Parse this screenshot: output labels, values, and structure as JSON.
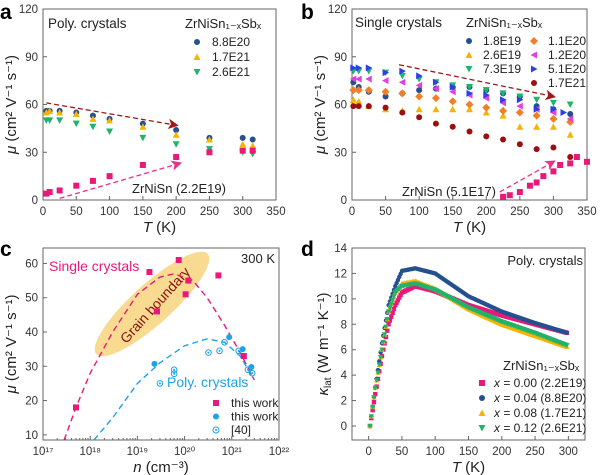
{
  "chart_data": [
    {
      "panel": "a",
      "type": "scatter",
      "xlabel": "T (K)",
      "ylabel": "μ (cm² V⁻¹ s⁻¹)",
      "xlim": [
        0,
        350
      ],
      "ylim": [
        0,
        120
      ],
      "xticks": [
        0,
        50,
        100,
        150,
        200,
        250,
        300,
        350
      ],
      "yticks": [
        0,
        30,
        60,
        90,
        120
      ],
      "annotation": "Poly. crystals",
      "legend_title": "ZrNiSn₁₋ₓSbₓ",
      "series": [
        {
          "name": "8.8E20",
          "marker": "circle",
          "color": "#24508f",
          "x": [
            5,
            10,
            25,
            50,
            75,
            100,
            150,
            200,
            250,
            300,
            315
          ],
          "y": [
            56,
            56,
            56,
            55,
            53,
            51,
            48,
            44,
            39,
            39,
            38
          ]
        },
        {
          "name": "1.7E21",
          "marker": "triangle-up",
          "color": "#f5b400",
          "x": [
            5,
            10,
            25,
            50,
            75,
            100,
            150,
            200,
            250,
            300,
            315
          ],
          "y": [
            55,
            56,
            55,
            54,
            51,
            50,
            46,
            41,
            38,
            35,
            34
          ]
        },
        {
          "name": "2.6E21",
          "marker": "triangle-down",
          "color": "#22b36b",
          "x": [
            5,
            10,
            25,
            50,
            75,
            100,
            150,
            200,
            250,
            300,
            315
          ],
          "y": [
            50,
            50,
            50,
            48,
            46,
            43,
            39,
            35,
            32,
            30,
            29
          ]
        },
        {
          "name": "ZrNiSn (2.2E19)",
          "marker": "square",
          "color": "#e8197a",
          "x": [
            5,
            10,
            25,
            50,
            75,
            100,
            150,
            200,
            250,
            300,
            315
          ],
          "y": [
            4,
            5,
            6,
            9,
            12,
            15,
            22,
            27,
            30,
            31,
            31
          ]
        }
      ],
      "arrows": [
        {
          "color": "#a01818",
          "from": [
            5,
            61
          ],
          "to": [
            200,
            47
          ]
        },
        {
          "color": "#ee2f8a",
          "from": [
            25,
            1
          ],
          "to": [
            205,
            23
          ]
        }
      ]
    },
    {
      "panel": "b",
      "type": "scatter",
      "xlabel": "T (K)",
      "ylabel": "μ (cm² V⁻¹ s⁻¹)",
      "xlim": [
        0,
        350
      ],
      "ylim": [
        0,
        120
      ],
      "xticks": [
        0,
        50,
        100,
        150,
        200,
        250,
        300,
        350
      ],
      "yticks": [
        0,
        30,
        60,
        90,
        120
      ],
      "annotation": "Single crystals",
      "legend_title": "ZrNiSn₁₋ₓSbₓ",
      "series": [
        {
          "name": "1.8E19",
          "marker": "circle",
          "color": "#24508f",
          "x": [
            2,
            10,
            25,
            50,
            75,
            100,
            125,
            150,
            175,
            200,
            225,
            250,
            275,
            300,
            325
          ],
          "y": [
            74,
            71,
            68,
            65,
            67,
            69,
            70,
            71,
            71,
            69,
            67,
            65,
            59,
            57,
            54
          ]
        },
        {
          "name": "2.6E19",
          "marker": "triangle-up",
          "color": "#f5b400",
          "x": [
            2,
            10,
            25,
            50,
            75,
            100,
            125,
            150,
            175,
            200,
            225,
            250,
            275,
            300,
            325
          ],
          "y": [
            63,
            62,
            59,
            57,
            56,
            57,
            57,
            57,
            57,
            55,
            53,
            46,
            46,
            46,
            41
          ]
        },
        {
          "name": "7.3E19",
          "marker": "triangle-down",
          "color": "#22b36b",
          "x": [
            2,
            10,
            25,
            50,
            75,
            100,
            125,
            150,
            175,
            200,
            225,
            250,
            275,
            300,
            325
          ],
          "y": [
            81,
            81,
            81,
            80,
            78,
            76,
            74,
            72,
            71,
            69,
            67,
            65,
            63,
            61,
            60
          ]
        },
        {
          "name": "1.1E20",
          "marker": "diamond",
          "color": "#f07f2a",
          "x": [
            2,
            10,
            25,
            50,
            75,
            100,
            125,
            150,
            175,
            200,
            225,
            250,
            275,
            300,
            325
          ],
          "y": [
            69,
            69,
            69,
            68,
            67,
            65,
            64,
            62,
            60,
            58,
            56,
            55,
            53,
            51,
            49
          ]
        },
        {
          "name": "1.2E20",
          "marker": "triangle-left",
          "color": "#e040e0",
          "x": [
            2,
            10,
            25,
            50,
            75,
            100,
            125,
            150,
            175,
            200,
            225,
            250,
            275,
            300,
            325
          ],
          "y": [
            76,
            76,
            76,
            75,
            74,
            72,
            70,
            68,
            66,
            64,
            61,
            59,
            57,
            55,
            51
          ]
        },
        {
          "name": "5.1E20",
          "marker": "triangle-right",
          "color": "#2a40e8",
          "x": [
            2,
            10,
            25,
            50,
            75,
            100,
            125,
            150,
            175,
            200,
            225,
            250,
            275,
            300,
            315
          ],
          "y": [
            83,
            83,
            83,
            80,
            81,
            78,
            74,
            71,
            67,
            66,
            63,
            63,
            57,
            57,
            55
          ]
        },
        {
          "name": "1.7E21",
          "marker": "circle",
          "color": "#9a1010",
          "x": [
            2,
            10,
            25,
            50,
            75,
            100,
            125,
            150,
            175,
            200,
            225,
            250,
            275,
            300,
            325
          ],
          "y": [
            59,
            59,
            59,
            58,
            55,
            52,
            48,
            46,
            43,
            40,
            38,
            35,
            32,
            33,
            27
          ]
        },
        {
          "name": "ZrNiSn (5.1E17)",
          "marker": "square",
          "color": "#e8197a",
          "x": [
            225,
            235,
            250,
            265,
            275,
            285,
            300,
            310,
            325,
            335,
            350
          ],
          "y": [
            2,
            3,
            5,
            9,
            11,
            15,
            18,
            22,
            23,
            27,
            24
          ]
        }
      ],
      "arrows": [
        {
          "color": "#a01818",
          "from": [
            70,
            85
          ],
          "to": [
            300,
            65
          ]
        },
        {
          "color": "#ee2f8a",
          "from": [
            220,
            5
          ],
          "to": [
            300,
            24
          ]
        }
      ]
    },
    {
      "panel": "c",
      "type": "scatter",
      "xlabel": "n (cm⁻³)",
      "ylabel": "μ (cm² V⁻¹ s⁻¹)",
      "xscale": "log",
      "xlim": [
        1e+17,
        1e+22
      ],
      "ylim": [
        8.5,
        64.5
      ],
      "xticks": [
        "10¹⁷",
        "10¹⁸",
        "10¹⁹",
        "10²⁰",
        "10²¹",
        "10²²"
      ],
      "yticks": [
        10,
        20,
        30,
        40,
        50,
        60
      ],
      "annotations": {
        "temp": "300 K",
        "single": "Single crystals",
        "poly": "Poly. crystals",
        "grain": "Grain boundary"
      },
      "series": [
        {
          "name": "this work",
          "marker": "square",
          "color": "#e8197a",
          "x": [
            5e+17,
            1.8e+19,
            2.6e+19,
            7.5e+19,
            1.05e+20,
            1.2e+20,
            5.2e+20,
            1.8e+21
          ],
          "y": [
            18,
            57.5,
            46,
            61,
            51,
            55,
            56.5,
            33
          ]
        },
        {
          "name": "this work",
          "marker": "circle",
          "color": "#1aa3e8",
          "x": [
            2.3e+19,
            8.8e+20,
            1.7e+21,
            2.6e+21
          ],
          "y": [
            30.7,
            38.5,
            35,
            29.8
          ]
        },
        {
          "name": "[40]",
          "marker": "open-circle",
          "color": "#1aa3e8",
          "x": [
            3e+19,
            6e+19,
            6e+19,
            3.2e+20,
            5.5e+20,
            7e+20,
            1.4e+21,
            2.2e+21,
            2.7e+21
          ],
          "y": [
            25,
            29,
            27.8,
            34,
            34.5,
            37,
            34.5,
            29,
            28
          ]
        }
      ],
      "fits": [
        {
          "color": "#e8197a",
          "x": [
            2.8e+17,
            5e+17,
            1e+18,
            3e+18,
            1e+19,
            3e+19,
            6e+19,
            1.5e+20,
            3e+20,
            7e+20,
            1.5e+21,
            3e+21
          ],
          "y": [
            6,
            18,
            28,
            40,
            51,
            56,
            57,
            55,
            50,
            42,
            34,
            26
          ]
        },
        {
          "color": "#1aa3e8",
          "x": [
            1.2e+18,
            3e+18,
            1e+19,
            3e+19,
            1e+20,
            3e+20,
            7e+20,
            1.5e+21,
            3e+21
          ],
          "y": [
            5,
            15,
            25,
            31,
            36,
            38,
            37,
            33,
            26
          ]
        }
      ]
    },
    {
      "panel": "d",
      "type": "scatter",
      "xlabel": "T (K)",
      "ylabel": {
        "sym": "κ",
        "sub": "lat",
        "unit": " (W m⁻¹ K⁻¹)"
      },
      "xlim": [
        -25,
        325
      ],
      "ylim": [
        -1.1,
        14
      ],
      "xticks": [
        0,
        50,
        100,
        150,
        200,
        250,
        300
      ],
      "yticks": [
        0,
        2,
        4,
        6,
        8,
        10,
        12,
        14
      ],
      "annotation": "Poly. crystals",
      "legend_title": "ZrNiSn₁₋ₓSbₓ",
      "series": [
        {
          "name": "x = 0.00 (2.2E19)",
          "marker": "square",
          "color": "#e8197a",
          "x": [
            2,
            10,
            20,
            30,
            40,
            50,
            70,
            100,
            150,
            200,
            250,
            300
          ],
          "y": [
            0,
            2.5,
            5.5,
            8,
            9.5,
            10.5,
            11,
            10.6,
            9.5,
            8.7,
            8,
            7.3
          ]
        },
        {
          "name": "x = 0.04 (8.8E20)",
          "marker": "circle",
          "color": "#24508f",
          "x": [
            2,
            10,
            20,
            30,
            40,
            50,
            70,
            100,
            150,
            200,
            250,
            300
          ],
          "y": [
            0,
            3,
            6.5,
            9.5,
            11,
            12.2,
            12.4,
            12,
            10.2,
            9,
            8.1,
            7.3
          ]
        },
        {
          "name": "x = 0.08 (1.7E21)",
          "marker": "triangle-up",
          "color": "#f5b400",
          "x": [
            2,
            10,
            20,
            30,
            40,
            50,
            70,
            100,
            150,
            200,
            250,
            300
          ],
          "y": [
            0,
            3,
            6,
            9,
            10.5,
            11.2,
            11.4,
            10.8,
            9.2,
            8,
            7.1,
            6.2
          ]
        },
        {
          "name": "x = 0.12 (2.6E21)",
          "marker": "triangle-down",
          "color": "#22b36b",
          "x": [
            2,
            10,
            20,
            30,
            40,
            50,
            70,
            100,
            150,
            200,
            250,
            300
          ],
          "y": [
            0,
            3,
            6,
            9,
            10.5,
            11,
            11.2,
            10.7,
            9.3,
            8.2,
            7.3,
            6.3
          ]
        }
      ]
    }
  ]
}
